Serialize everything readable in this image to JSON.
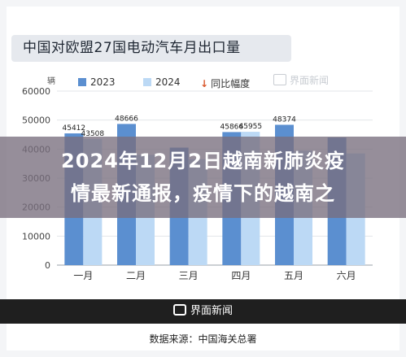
{
  "chart_data": {
    "type": "bar",
    "title": "中国对欧盟27国电动汽车月出口量",
    "ylabel": "辆",
    "ylim": [
      0,
      60000
    ],
    "yticks": [
      0,
      10000,
      20000,
      30000,
      40000,
      50000,
      60000
    ],
    "ytick_labels": [
      "0",
      "10000",
      "20000",
      "30000",
      "40000",
      "50000",
      "60000"
    ],
    "categories": [
      "一月",
      "二月",
      "三月",
      "四月",
      "五月",
      "六月"
    ],
    "series": [
      {
        "name": "2023",
        "color": "#5b8fd0",
        "values": [
          45412,
          48666,
          40500,
          45866,
          48374,
          44000
        ]
      },
      {
        "name": "2024",
        "color": "#bcd9f5",
        "values": [
          43508,
          38000,
          36500,
          45955,
          39500,
          38500
        ]
      }
    ],
    "data_labels": [
      {
        "category": "一月",
        "series": "2023",
        "text": "45412"
      },
      {
        "category": "一月",
        "series": "2024",
        "text": "43508"
      },
      {
        "category": "二月",
        "series": "2023",
        "text": "48666"
      },
      {
        "category": "四月",
        "series": "2023",
        "text": "45866"
      },
      {
        "category": "四月",
        "series": "2024",
        "text": "45955"
      },
      {
        "category": "五月",
        "series": "2023",
        "text": "48374"
      }
    ],
    "legend": {
      "extra_label": "同比幅度",
      "extra_color": "#d9582c",
      "placement": "top"
    },
    "grid": true
  },
  "overlay": {
    "headline_line1": "2024年12月2日越南新肺炎疫",
    "headline_line2": "情最新通报，疫情下的越南之"
  },
  "watermark": {
    "top_text": "界面新闻",
    "footer_text": "界面新闻"
  },
  "source": "数据来源：中国海关总署"
}
